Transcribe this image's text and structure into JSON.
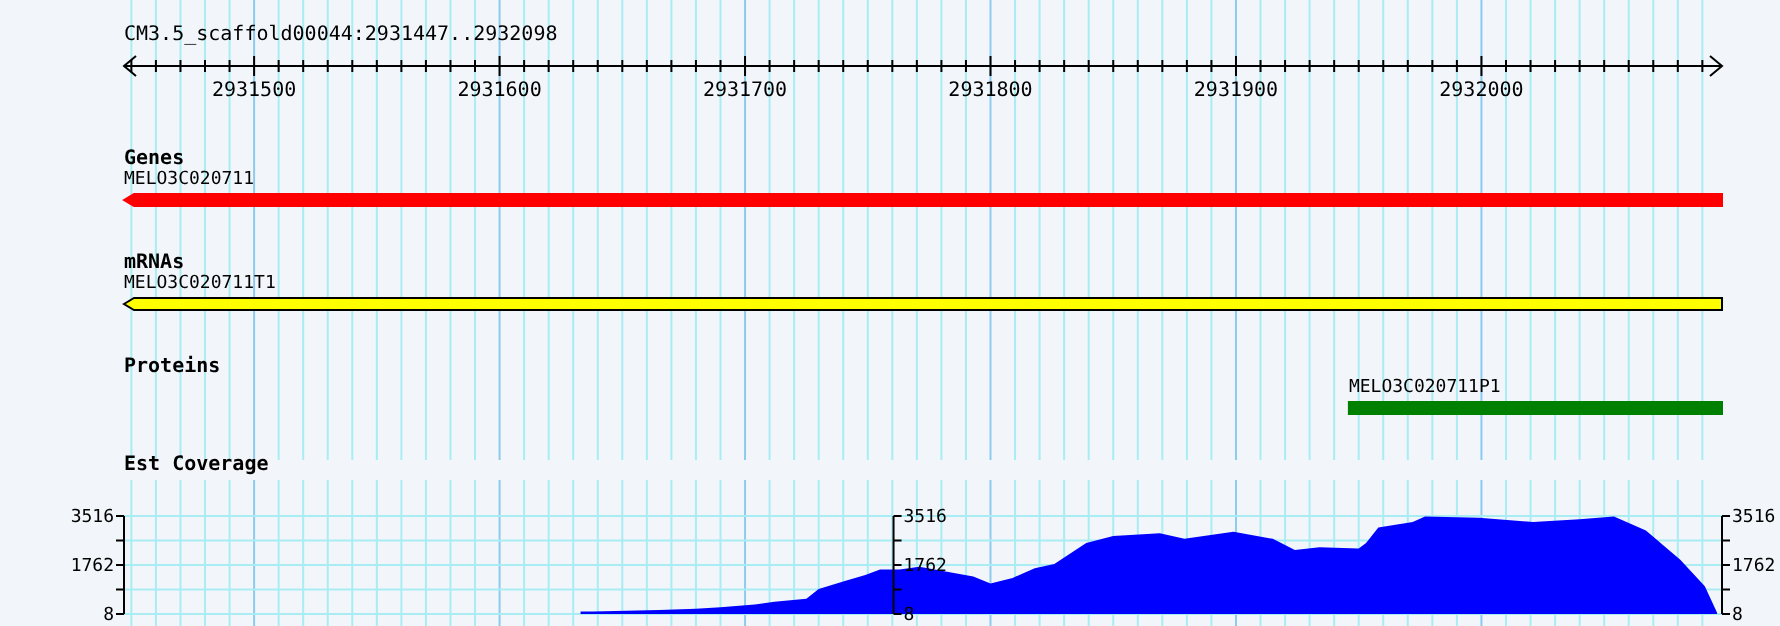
{
  "chart_data": [
    {
      "type": "bar",
      "orientation": "horizontal",
      "title": "CM3.5_scaffold00044:2931447..2932098",
      "categories": [
        "Genes",
        "mRNAs",
        "Proteins"
      ],
      "base": [
        2931447,
        2931447,
        2931946
      ],
      "values": [
        651,
        651,
        152
      ],
      "colors": [
        "#ff0000",
        "#ffff00",
        "#008000"
      ],
      "value_labels": [
        "MELO3C020711",
        "MELO3C020711T1",
        "MELO3C020711P1"
      ],
      "xlim": [
        2931447,
        2932098
      ],
      "xticks": [
        {
          "value": 2931450,
          "label": null
        },
        {
          "value": 2931460,
          "label": null
        },
        {
          "value": 2931470,
          "label": null
        },
        {
          "value": 2931480,
          "label": null
        },
        {
          "value": 2931490,
          "label": null
        },
        2931500,
        {
          "value": 2931510,
          "label": null
        },
        {
          "value": 2931520,
          "label": null
        },
        {
          "value": 2931530,
          "label": null
        },
        {
          "value": 2931540,
          "label": null
        },
        {
          "value": 2931550,
          "label": null
        },
        {
          "value": 2931560,
          "label": null
        },
        {
          "value": 2931570,
          "label": null
        },
        {
          "value": 2931580,
          "label": null
        },
        {
          "value": 2931590,
          "label": null
        },
        2931600,
        {
          "value": 2931610,
          "label": null
        },
        {
          "value": 2931620,
          "label": null
        },
        {
          "value": 2931630,
          "label": null
        },
        {
          "value": 2931640,
          "label": null
        },
        {
          "value": 2931650,
          "label": null
        },
        {
          "value": 2931660,
          "label": null
        },
        {
          "value": 2931670,
          "label": null
        },
        {
          "value": 2931680,
          "label": null
        },
        {
          "value": 2931690,
          "label": null
        },
        2931700,
        {
          "value": 2931710,
          "label": null
        },
        {
          "value": 2931720,
          "label": null
        },
        {
          "value": 2931730,
          "label": null
        },
        {
          "value": 2931740,
          "label": null
        },
        {
          "value": 2931750,
          "label": null
        },
        {
          "value": 2931760,
          "label": null
        },
        {
          "value": 2931770,
          "label": null
        },
        {
          "value": 2931780,
          "label": null
        },
        {
          "value": 2931790,
          "label": null
        },
        2931800,
        {
          "value": 2931810,
          "label": null
        },
        {
          "value": 2931820,
          "label": null
        },
        {
          "value": 2931830,
          "label": null
        },
        {
          "value": 2931840,
          "label": null
        },
        {
          "value": 2931850,
          "label": null
        },
        {
          "value": 2931860,
          "label": null
        },
        {
          "value": 2931870,
          "label": null
        },
        {
          "value": 2931880,
          "label": null
        },
        {
          "value": 2931890,
          "label": null
        },
        2931900,
        {
          "value": 2931910,
          "label": null
        },
        {
          "value": 2931920,
          "label": null
        },
        {
          "value": 2931930,
          "label": null
        },
        {
          "value": 2931940,
          "label": null
        },
        {
          "value": 2931950,
          "label": null
        },
        {
          "value": 2931960,
          "label": null
        },
        {
          "value": 2931970,
          "label": null
        },
        {
          "value": 2931980,
          "label": null
        },
        {
          "value": 2931990,
          "label": null
        },
        2932000,
        {
          "value": 2932010,
          "label": null
        },
        {
          "value": 2932020,
          "label": null
        },
        {
          "value": 2932030,
          "label": null
        },
        {
          "value": 2932040,
          "label": null
        },
        {
          "value": 2932050,
          "label": null
        },
        {
          "value": 2932060,
          "label": null
        },
        {
          "value": 2932070,
          "label": null
        },
        {
          "value": 2932080,
          "label": null
        },
        {
          "value": 2932090,
          "label": null
        }
      ],
      "grid": "x"
    },
    {
      "type": "area",
      "title": "Est Coverage",
      "tick_labels": "y",
      "x": [
        2931633,
        2931638,
        2931665,
        2931680,
        2931690,
        2931704,
        2931712,
        2931725,
        2931730,
        2931741,
        2931749,
        2931755,
        2931763,
        2931771,
        2931793,
        2931800,
        2931809,
        2931818,
        2931826,
        2931839,
        2931850,
        2931869,
        2931879,
        2931899,
        2931915,
        2931924,
        2931934,
        2931950,
        2931953,
        2931958,
        2931972,
        2931977,
        2931999,
        2932021,
        2932040,
        2932054,
        2932067,
        2932081,
        2932091,
        2932096
      ],
      "series": [
        {
          "color": "#0000ff",
          "values": [
            100,
            100,
            150,
            200,
            250,
            350,
            450,
            550,
            900,
            1200,
            1400,
            1600,
            1600,
            1700,
            1350,
            1100,
            1300,
            1650,
            1800,
            2550,
            2800,
            2900,
            2700,
            2950,
            2700,
            2300,
            2400,
            2350,
            2550,
            3100,
            3300,
            3500,
            3450,
            3300,
            3400,
            3500,
            3000,
            1950,
            1000,
            50
          ]
        }
      ],
      "xlim": [
        2931447,
        2932098
      ],
      "xticks": [
        {
          "value": 2931450,
          "label": null
        },
        {
          "value": 2931460,
          "label": null
        },
        {
          "value": 2931470,
          "label": null
        },
        {
          "value": 2931480,
          "label": null
        },
        {
          "value": 2931490,
          "label": null
        },
        2931500,
        {
          "value": 2931510,
          "label": null
        },
        {
          "value": 2931520,
          "label": null
        },
        {
          "value": 2931530,
          "label": null
        },
        {
          "value": 2931540,
          "label": null
        },
        {
          "value": 2931550,
          "label": null
        },
        {
          "value": 2931560,
          "label": null
        },
        {
          "value": 2931570,
          "label": null
        },
        {
          "value": 2931580,
          "label": null
        },
        {
          "value": 2931590,
          "label": null
        },
        2931600,
        {
          "value": 2931610,
          "label": null
        },
        {
          "value": 2931620,
          "label": null
        },
        {
          "value": 2931630,
          "label": null
        },
        {
          "value": 2931640,
          "label": null
        },
        {
          "value": 2931650,
          "label": null
        },
        {
          "value": 2931660,
          "label": null
        },
        {
          "value": 2931670,
          "label": null
        },
        {
          "value": 2931680,
          "label": null
        },
        {
          "value": 2931690,
          "label": null
        },
        2931700,
        {
          "value": 2931710,
          "label": null
        },
        {
          "value": 2931720,
          "label": null
        },
        {
          "value": 2931730,
          "label": null
        },
        {
          "value": 2931740,
          "label": null
        },
        {
          "value": 2931750,
          "label": null
        },
        {
          "value": 2931760,
          "label": null
        },
        {
          "value": 2931770,
          "label": null
        },
        {
          "value": 2931780,
          "label": null
        },
        {
          "value": 2931790,
          "label": null
        },
        2931800,
        {
          "value": 2931810,
          "label": null
        },
        {
          "value": 2931820,
          "label": null
        },
        {
          "value": 2931830,
          "label": null
        },
        {
          "value": 2931840,
          "label": null
        },
        {
          "value": 2931850,
          "label": null
        },
        {
          "value": 2931860,
          "label": null
        },
        {
          "value": 2931870,
          "label": null
        },
        {
          "value": 2931880,
          "label": null
        },
        {
          "value": 2931890,
          "label": null
        },
        2931900,
        {
          "value": 2931910,
          "label": null
        },
        {
          "value": 2931920,
          "label": null
        },
        {
          "value": 2931930,
          "label": null
        },
        {
          "value": 2931940,
          "label": null
        },
        {
          "value": 2931950,
          "label": null
        },
        {
          "value": 2931960,
          "label": null
        },
        {
          "value": 2931970,
          "label": null
        },
        {
          "value": 2931980,
          "label": null
        },
        {
          "value": 2931990,
          "label": null
        },
        2932000,
        {
          "value": 2932010,
          "label": null
        },
        {
          "value": 2932020,
          "label": null
        },
        {
          "value": 2932030,
          "label": null
        },
        {
          "value": 2932040,
          "label": null
        },
        {
          "value": 2932050,
          "label": null
        },
        {
          "value": 2932060,
          "label": null
        },
        {
          "value": 2932070,
          "label": null
        },
        {
          "value": 2932080,
          "label": null
        },
        {
          "value": 2932090,
          "label": null
        }
      ],
      "ylim": [
        8,
        3516
      ],
      "yticks": [
        8,
        {
          "value": 885,
          "label": null
        },
        1762,
        {
          "value": 2639,
          "label": null
        },
        3516
      ],
      "y3lim": [
        8,
        3516
      ],
      "y3ticks": [
        8,
        {
          "value": 885,
          "label": null
        },
        1762,
        {
          "value": 2639,
          "label": null
        },
        3516
      ],
      "y2lim": [
        8,
        3516
      ],
      "y2ticks": [
        8,
        {
          "value": 885,
          "label": null
        },
        1762,
        {
          "value": 2639,
          "label": null
        },
        3516
      ],
      "grid": true
    }
  ]
}
